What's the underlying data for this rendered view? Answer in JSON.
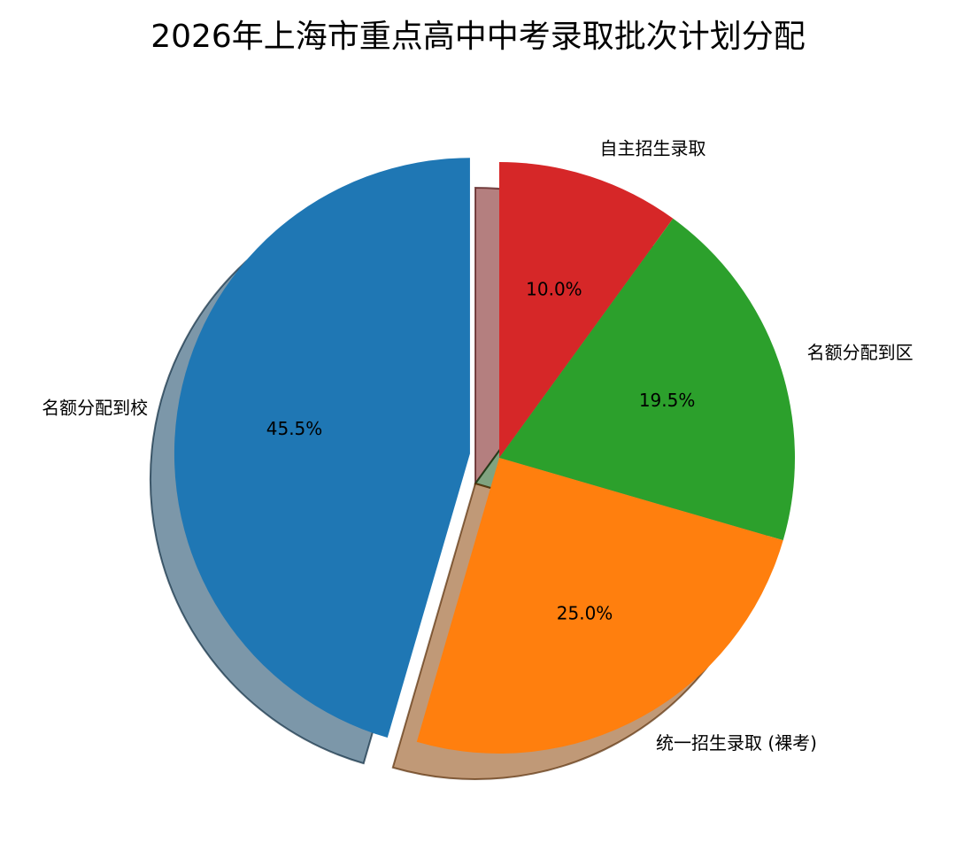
{
  "chart_data": {
    "type": "pie",
    "title": "2026年上海市重点高中中考录取批次计划分配",
    "start_angle": 90,
    "direction": "clockwise",
    "shadow": true,
    "slices": [
      {
        "label": "自主招生录取",
        "value": 10.0,
        "pct_label": "10.0%",
        "color": "#d62728",
        "explode": 0
      },
      {
        "label": "名额分配到区",
        "value": 19.5,
        "pct_label": "19.5%",
        "color": "#2ca02c",
        "explode": 0
      },
      {
        "label": "统一招生录取 (裸考)",
        "value": 25.0,
        "pct_label": "25.0%",
        "color": "#ff7f0e",
        "explode": 0
      },
      {
        "label": "名额分配到校",
        "value": 45.5,
        "pct_label": "45.5%",
        "color": "#1f77b4",
        "explode": 0.1
      }
    ]
  }
}
